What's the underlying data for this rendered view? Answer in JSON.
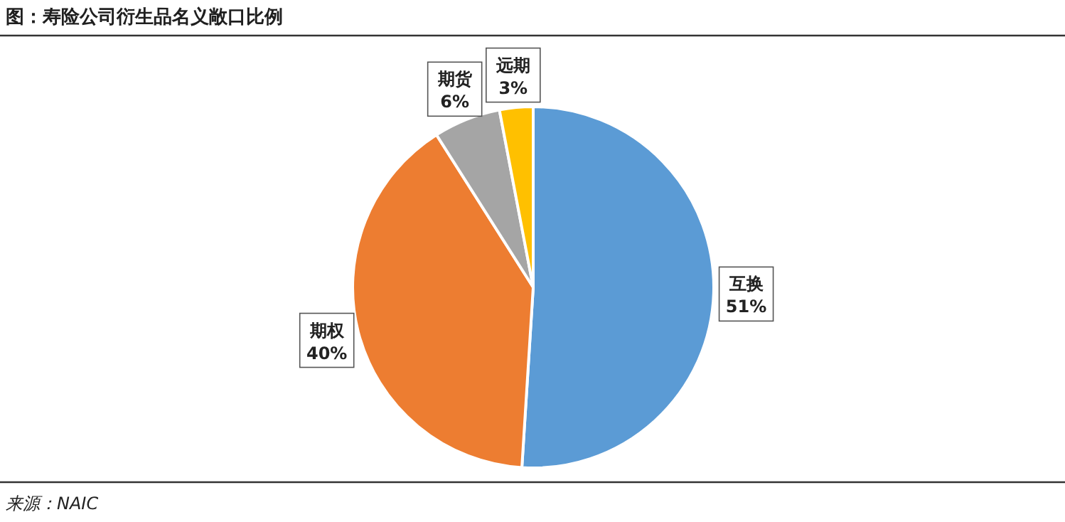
{
  "chart_data": {
    "type": "pie",
    "title": "图：寿险公司衍生品名义敞口比例",
    "categories": [
      "互换",
      "期权",
      "期货",
      "远期"
    ],
    "values": [
      51,
      40,
      6,
      3
    ],
    "value_labels": [
      "51%",
      "40%",
      "6%",
      "3%"
    ],
    "colors": [
      "#5b9bd5",
      "#ed7d31",
      "#a5a5a5",
      "#ffc000"
    ],
    "annotations": [
      "来源：NAIC"
    ]
  }
}
